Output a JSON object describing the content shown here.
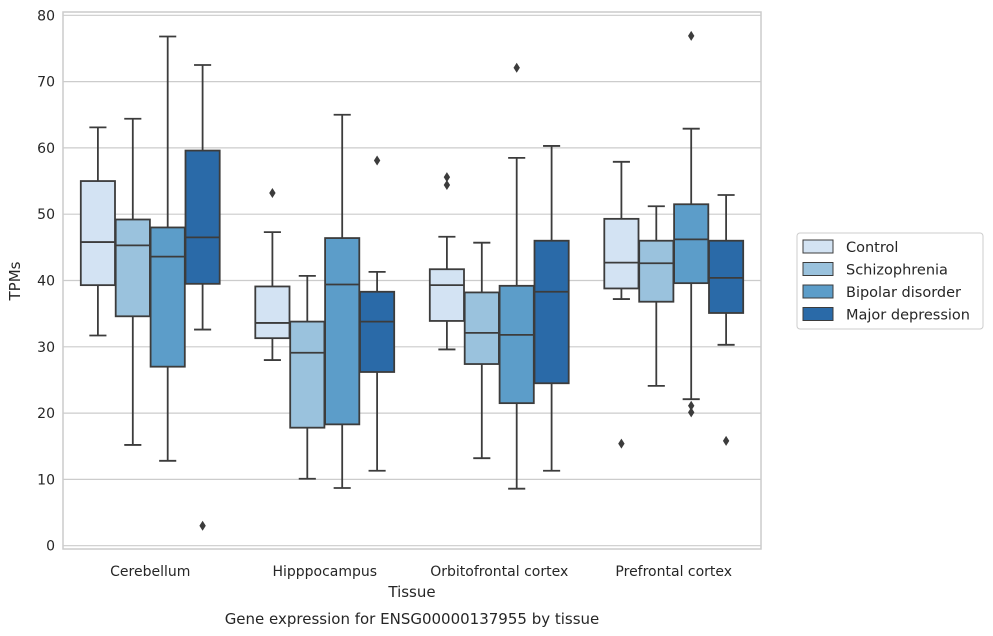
{
  "chart_data": {
    "type": "box",
    "title": "",
    "caption": "Gene expression for ENSG00000137955 by tissue",
    "xlabel": "Tissue",
    "ylabel": "TPMs",
    "ylim": [
      -0.5,
      80.5
    ],
    "yticks": [
      0,
      10,
      20,
      30,
      40,
      50,
      60,
      70,
      80
    ],
    "grid": "horizontal",
    "legend_position": "right",
    "categories": [
      "Cerebellum",
      "Hipppocampus",
      "Orbitofrontal cortex",
      "Prefrontal cortex"
    ],
    "series": [
      {
        "name": "Control",
        "color": "#d3e3f3",
        "boxes": [
          {
            "whislo": 31.7,
            "q1": 39.3,
            "med": 45.8,
            "q3": 55.0,
            "whishi": 63.1,
            "fliers": []
          },
          {
            "whislo": 28.0,
            "q1": 31.3,
            "med": 33.6,
            "q3": 39.1,
            "whishi": 47.3,
            "fliers": [
              53.2
            ]
          },
          {
            "whislo": 29.6,
            "q1": 33.9,
            "med": 39.3,
            "q3": 41.7,
            "whishi": 46.6,
            "fliers": [
              54.4,
              55.6
            ]
          },
          {
            "whislo": 37.2,
            "q1": 38.8,
            "med": 42.7,
            "q3": 49.3,
            "whishi": 57.9,
            "fliers": [
              15.4
            ]
          }
        ]
      },
      {
        "name": "Schizophrenia",
        "color": "#9ac2dd",
        "boxes": [
          {
            "whislo": 15.2,
            "q1": 34.6,
            "med": 45.3,
            "q3": 49.2,
            "whishi": 64.4,
            "fliers": []
          },
          {
            "whislo": 10.1,
            "q1": 17.8,
            "med": 29.1,
            "q3": 33.8,
            "whishi": 40.7,
            "fliers": []
          },
          {
            "whislo": 13.2,
            "q1": 27.4,
            "med": 32.1,
            "q3": 38.2,
            "whishi": 45.7,
            "fliers": []
          },
          {
            "whislo": 24.1,
            "q1": 36.8,
            "med": 42.6,
            "q3": 46.0,
            "whishi": 51.2,
            "fliers": []
          }
        ]
      },
      {
        "name": "Bipolar disorder",
        "color": "#5c9dc9",
        "boxes": [
          {
            "whislo": 12.8,
            "q1": 27.0,
            "med": 43.6,
            "q3": 48.0,
            "whishi": 76.8,
            "fliers": []
          },
          {
            "whislo": 8.7,
            "q1": 18.3,
            "med": 39.4,
            "q3": 46.4,
            "whishi": 65.0,
            "fliers": []
          },
          {
            "whislo": 8.6,
            "q1": 21.5,
            "med": 31.8,
            "q3": 39.2,
            "whishi": 58.5,
            "fliers": [
              72.1
            ]
          },
          {
            "whislo": 22.1,
            "q1": 39.6,
            "med": 46.2,
            "q3": 51.5,
            "whishi": 62.9,
            "fliers": [
              20.1,
              21.1,
              76.9
            ]
          }
        ]
      },
      {
        "name": "Major depression",
        "color": "#2a6aa8",
        "boxes": [
          {
            "whislo": 32.6,
            "q1": 39.5,
            "med": 46.5,
            "q3": 59.6,
            "whishi": 72.5,
            "fliers": [
              3.0
            ]
          },
          {
            "whislo": 11.3,
            "q1": 26.2,
            "med": 33.8,
            "q3": 38.3,
            "whishi": 41.3,
            "fliers": [
              58.1
            ]
          },
          {
            "whislo": 11.3,
            "q1": 24.5,
            "med": 38.3,
            "q3": 46.0,
            "whishi": 60.3,
            "fliers": []
          },
          {
            "whislo": 30.3,
            "q1": 35.1,
            "med": 40.4,
            "q3": 46.0,
            "whishi": 52.9,
            "fliers": [
              15.8
            ]
          }
        ]
      }
    ]
  }
}
